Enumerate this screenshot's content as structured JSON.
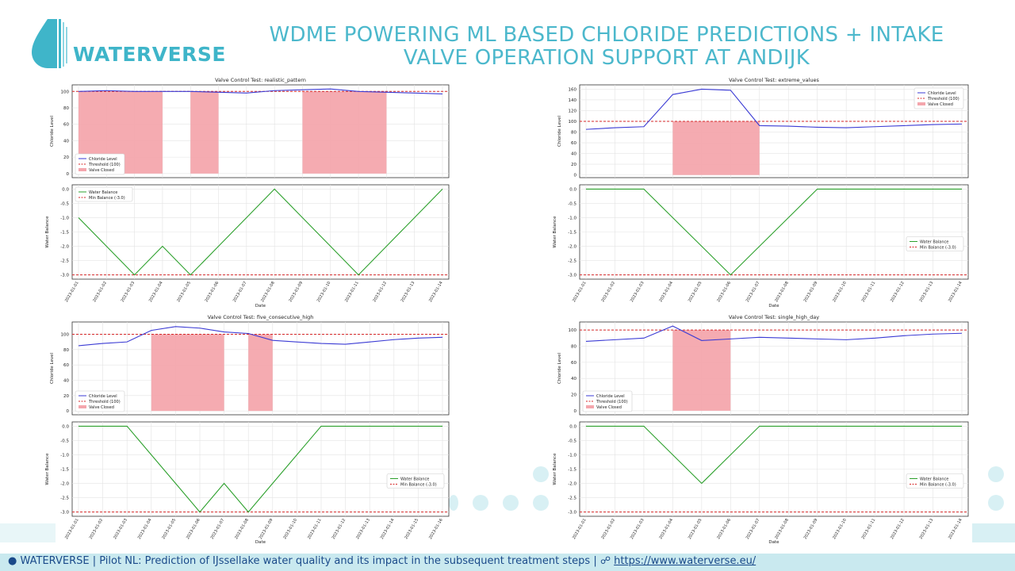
{
  "header": {
    "brand": "WATERVERSE",
    "title_line1": "WDME POWERING ML BASED CHLORIDE PREDICTIONS + INTAKE",
    "title_line2": "VALVE OPERATION SUPPORT AT ANDIJK"
  },
  "footer": {
    "prefix": "WATERVERSE | Pilot NL:  Prediction of IJssellake water quality and its impact in the subsequent treatment steps |",
    "link": "https://www.waterverse.eu/"
  },
  "colors": {
    "brand": "#3fb5c9",
    "chloride": "#3b3bd4",
    "balance": "#2ca02c",
    "threshold": "#d62728",
    "valve_closed": "#f4a6ad",
    "footer_bg": "#c9e9ef"
  },
  "chart_data": [
    {
      "type": "line",
      "title": "Valve Control Test: realistic_pattern",
      "x": [
        "2023-01-01",
        "2023-01-02",
        "2023-01-03",
        "2023-01-04",
        "2023-01-05",
        "2023-01-06",
        "2023-01-07",
        "2023-01-08",
        "2023-01-09",
        "2023-01-10",
        "2023-01-11",
        "2023-01-12",
        "2023-01-13",
        "2023-01-14"
      ],
      "xlabel": "Date",
      "top": {
        "ylabel": "Chloride Level",
        "ylim": [
          -5,
          108
        ],
        "yticks": [
          0,
          20,
          40,
          60,
          80,
          100
        ],
        "series": [
          {
            "name": "Chloride Level",
            "values": [
              100,
              101,
              100,
              100,
              100,
              99,
              98,
              101,
              102,
              103,
              100,
              99,
              98,
              97
            ]
          }
        ],
        "threshold": 100,
        "threshold_label": "Threshold (100)",
        "valve_closed_label": "Valve Closed",
        "closed": [
          [
            0,
            3
          ],
          [
            4,
            5
          ],
          [
            8,
            11
          ]
        ],
        "legend": "lower-left"
      },
      "bottom": {
        "ylabel": "Water Balance",
        "ylim": [
          -3.15,
          0.15
        ],
        "yticks": [
          0.0,
          -0.5,
          -1.0,
          -1.5,
          -2.0,
          -2.5,
          -3.0
        ],
        "series": [
          {
            "name": "Water Balance",
            "values": [
              -1,
              -2,
              -3,
              -2,
              -3,
              -2,
              -1,
              0,
              -1,
              -2,
              -3,
              -2,
              -1,
              0
            ]
          }
        ],
        "min_balance": -3,
        "min_label": "Min Balance (-3.0)",
        "legend": "upper-left"
      }
    },
    {
      "type": "line",
      "title": "Valve Control Test: extreme_values",
      "x": [
        "2023-01-01",
        "2023-01-02",
        "2023-01-03",
        "2023-01-04",
        "2023-01-05",
        "2023-01-06",
        "2023-01-07",
        "2023-01-08",
        "2023-01-09",
        "2023-01-10",
        "2023-01-11",
        "2023-01-12",
        "2023-01-13",
        "2023-01-14"
      ],
      "xlabel": "Date",
      "top": {
        "ylabel": "Chloride Level",
        "ylim": [
          -5,
          168
        ],
        "yticks": [
          0,
          20,
          40,
          60,
          80,
          100,
          120,
          140,
          160
        ],
        "series": [
          {
            "name": "Chloride Level",
            "values": [
              85,
              88,
              90,
              150,
              160,
              158,
              92,
              91,
              89,
              88,
              90,
              92,
              94,
              95
            ]
          }
        ],
        "threshold": 100,
        "threshold_label": "Threshold (100)",
        "valve_closed_label": "Valve Closed",
        "closed": [
          [
            3,
            6
          ]
        ],
        "legend": "upper-right"
      },
      "bottom": {
        "ylabel": "Water Balance",
        "ylim": [
          -3.15,
          0.15
        ],
        "yticks": [
          0.0,
          -0.5,
          -1.0,
          -1.5,
          -2.0,
          -2.5,
          -3.0
        ],
        "series": [
          {
            "name": "Water Balance",
            "values": [
              0,
              0,
              0,
              -1,
              -2,
              -3,
              -2,
              -1,
              0,
              0,
              0,
              0,
              0,
              0
            ]
          }
        ],
        "min_balance": -3,
        "min_label": "Min Balance (-3.0)",
        "legend": "center-right"
      }
    },
    {
      "type": "line",
      "title": "Valve Control Test: five_consecutive_high",
      "x": [
        "2023-01-01",
        "2023-01-02",
        "2023-01-03",
        "2023-01-04",
        "2023-01-05",
        "2023-01-06",
        "2023-01-07",
        "2023-01-08",
        "2023-01-09",
        "2023-01-10",
        "2023-01-11",
        "2023-01-12",
        "2023-01-13",
        "2023-01-14",
        "2023-01-15",
        "2023-01-16"
      ],
      "xlabel": "Date",
      "top": {
        "ylabel": "Chloride Level",
        "ylim": [
          -5,
          116
        ],
        "yticks": [
          0,
          20,
          40,
          60,
          80,
          100
        ],
        "series": [
          {
            "name": "Chloride Level",
            "values": [
              85,
              88,
              90,
              105,
              110,
              108,
              103,
              101,
              92,
              90,
              88,
              87,
              90,
              93,
              95,
              96
            ]
          }
        ],
        "threshold": 100,
        "threshold_label": "Threshold (100)",
        "valve_closed_label": "Valve Closed",
        "closed": [
          [
            3,
            6
          ],
          [
            7,
            8
          ]
        ],
        "legend": "lower-left"
      },
      "bottom": {
        "ylabel": "Water Balance",
        "ylim": [
          -3.15,
          0.15
        ],
        "yticks": [
          0.0,
          -0.5,
          -1.0,
          -1.5,
          -2.0,
          -2.5,
          -3.0
        ],
        "series": [
          {
            "name": "Water Balance",
            "values": [
              0,
              0,
              0,
              -1,
              -2,
              -3,
              -2,
              -3,
              -2,
              -1,
              0,
              0,
              0,
              0,
              0,
              0
            ]
          }
        ],
        "min_balance": -3,
        "min_label": "Min Balance (-3.0)",
        "legend": "center-right"
      }
    },
    {
      "type": "line",
      "title": "Valve Control Test: single_high_day",
      "x": [
        "2023-01-01",
        "2023-01-02",
        "2023-01-03",
        "2023-01-04",
        "2023-01-05",
        "2023-01-06",
        "2023-01-07",
        "2023-01-08",
        "2023-01-09",
        "2023-01-10",
        "2023-01-11",
        "2023-01-12",
        "2023-01-13",
        "2023-01-14"
      ],
      "xlabel": "Date",
      "top": {
        "ylabel": "Chloride Level",
        "ylim": [
          -5,
          110
        ],
        "yticks": [
          0,
          20,
          40,
          60,
          80,
          100
        ],
        "series": [
          {
            "name": "Chloride Level",
            "values": [
              86,
              88,
              90,
              105,
              87,
              89,
              91,
              90,
              89,
              88,
              90,
              93,
              95,
              96
            ]
          }
        ],
        "threshold": 100,
        "threshold_label": "Threshold (100)",
        "valve_closed_label": "Valve Closed",
        "closed": [
          [
            3,
            5
          ]
        ],
        "legend": "lower-left"
      },
      "bottom": {
        "ylabel": "Water Balance",
        "ylim": [
          -3.15,
          0.15
        ],
        "yticks": [
          0.0,
          -0.5,
          -1.0,
          -1.5,
          -2.0,
          -2.5,
          -3.0
        ],
        "series": [
          {
            "name": "Water Balance",
            "values": [
              0,
              0,
              0,
              -1,
              -2,
              -1,
              0,
              0,
              0,
              0,
              0,
              0,
              0,
              0
            ]
          }
        ],
        "min_balance": -3,
        "min_label": "Min Balance (-3.0)",
        "legend": "center-right"
      }
    }
  ]
}
